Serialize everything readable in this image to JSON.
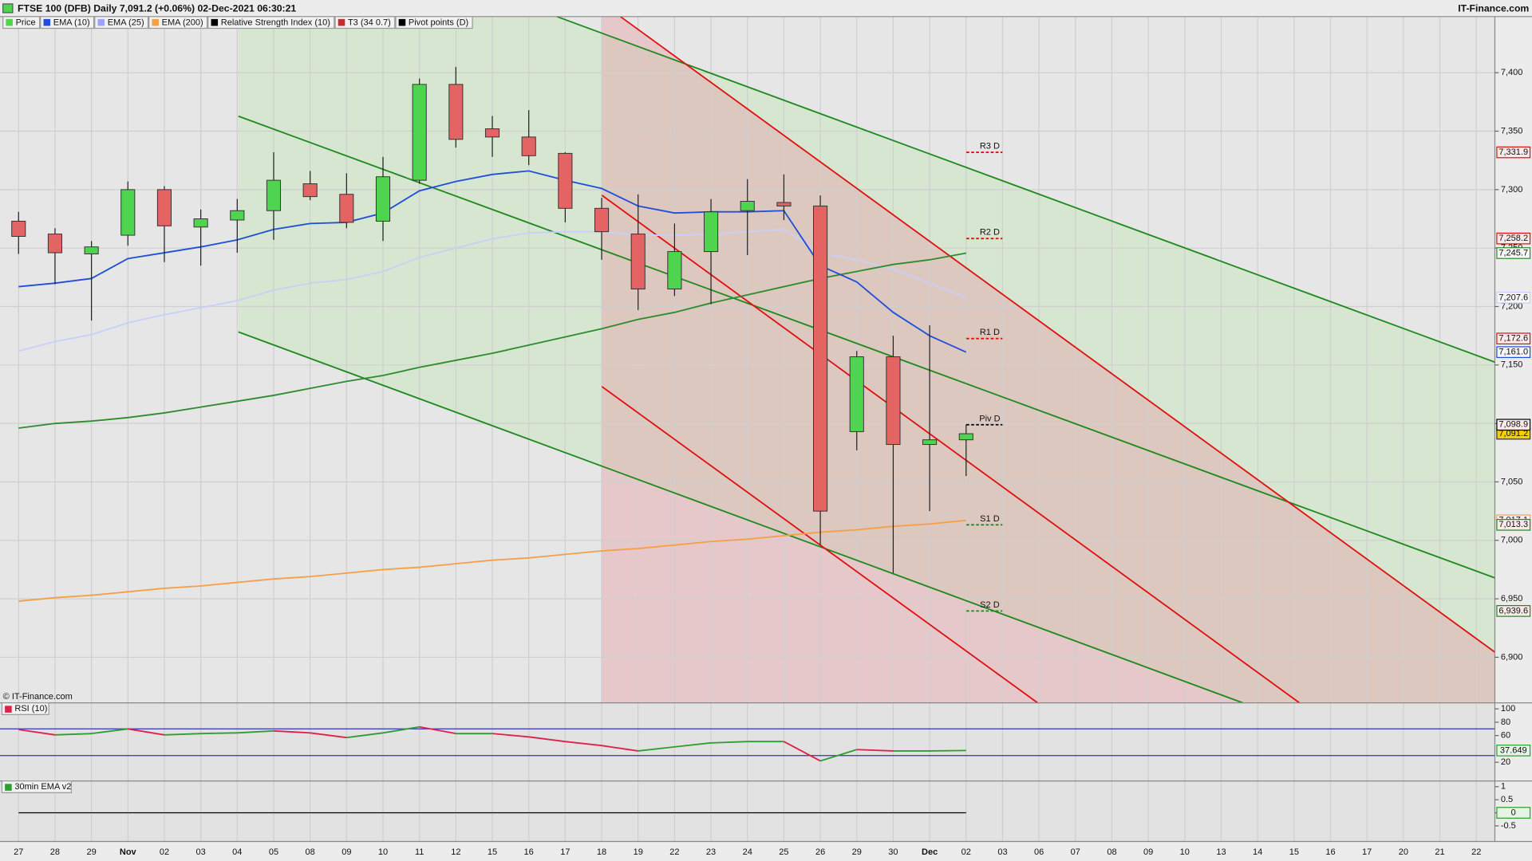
{
  "chart_data": [
    {
      "type": "candlestick",
      "title": "FTSE 100 (DFB) Daily 7,091.2 (+0.06%) 02-Dec-2021 06:30:21",
      "source": "IT-Finance.com",
      "credit": "© IT-Finance.com",
      "legend": [
        {
          "name": "Price",
          "color": "#4fd44f"
        },
        {
          "name": "EMA (10)",
          "color": "#1f4fd8"
        },
        {
          "name": "EMA (25)",
          "color": "#9fa3f5"
        },
        {
          "name": "EMA (200)",
          "color": "#f4a04a"
        },
        {
          "name": "Relative Strength Index (10)",
          "color": "#000000"
        },
        {
          "name": "T3 (34 0.7)",
          "color": "#c03030"
        },
        {
          "name": "Pivot points (D)",
          "color": "#000000"
        }
      ],
      "categories": [
        "27",
        "28",
        "29",
        "Nov",
        "02",
        "03",
        "04",
        "05",
        "08",
        "09",
        "10",
        "11",
        "12",
        "15",
        "16",
        "17",
        "18",
        "19",
        "22",
        "23",
        "24",
        "25",
        "26",
        "29",
        "30",
        "Dec",
        "02",
        "03",
        "06",
        "07",
        "08",
        "09",
        "10",
        "13",
        "14",
        "15",
        "16",
        "17",
        "20",
        "21",
        "22"
      ],
      "open": [
        7273,
        7262,
        7245,
        7261,
        7300,
        7268,
        7274,
        7282,
        7305,
        7296,
        7273,
        7308,
        7390,
        7352,
        7345,
        7331,
        7284,
        7262,
        7215,
        7247,
        7282,
        7289,
        7286,
        7093,
        7157,
        7082,
        7086,
        null,
        null,
        null,
        null,
        null,
        null,
        null,
        null,
        null,
        null,
        null,
        null,
        null,
        null
      ],
      "high": [
        7281,
        7267,
        7256,
        7307,
        7303,
        7283,
        7292,
        7332,
        7316,
        7314,
        7328,
        7395,
        7405,
        7363,
        7368,
        7332,
        7293,
        7296,
        7271,
        7292,
        7309,
        7313,
        7295,
        7162,
        7175,
        7184,
        7099,
        null,
        null,
        null,
        null,
        null,
        null,
        null,
        null,
        null,
        null,
        null,
        null,
        null,
        null
      ],
      "low": [
        7245,
        7219,
        7188,
        7252,
        7238,
        7235,
        7246,
        7257,
        7291,
        7267,
        7256,
        7305,
        7336,
        7328,
        7321,
        7272,
        7240,
        7197,
        7209,
        7202,
        7244,
        7274,
        6996,
        7077,
        6972,
        7025,
        7055,
        null,
        null,
        null,
        null,
        null,
        null,
        null,
        null,
        null,
        null,
        null,
        null,
        null,
        null
      ],
      "close": [
        7260,
        7246,
        7251,
        7300,
        7269,
        7275,
        7282,
        7308,
        7294,
        7272,
        7311,
        7390,
        7343,
        7345,
        7329,
        7284,
        7264,
        7215,
        7247,
        7281,
        7290,
        7286,
        7025,
        7157,
        7082,
        7086,
        7091.2,
        null,
        null,
        null,
        null,
        null,
        null,
        null,
        null,
        null,
        null,
        null,
        null,
        null,
        null
      ],
      "close_last_label": "7,091.2",
      "up_color": "#4fd44f",
      "down_color": "#e46464",
      "series": [
        {
          "color": "#c8d0f8",
          "values": [
            7162,
            7170,
            7176,
            7186,
            7193,
            7199,
            7205,
            7214,
            7220,
            7223,
            7230,
            7242,
            7250,
            7258,
            7263,
            7264,
            7264,
            7261,
            7261,
            7262,
            7264,
            7266,
            7246,
            7240,
            7232,
            7220,
            7207.6,
            null,
            null,
            null,
            null,
            null,
            null,
            null,
            null,
            null,
            null,
            null,
            null,
            null,
            null
          ],
          "last_label": "7,207.6"
        },
        {
          "color": "#f4a04a",
          "values": [
            6948,
            6951,
            6953,
            6956,
            6959,
            6961,
            6964,
            6967,
            6969,
            6972,
            6975,
            6977,
            6980,
            6983,
            6985,
            6988,
            6991,
            6993,
            6996,
            6999,
            7001,
            7004,
            7007,
            7009,
            7012,
            7014,
            7017.1,
            null,
            null,
            null,
            null,
            null,
            null,
            null,
            null,
            null,
            null,
            null,
            null,
            null,
            null
          ],
          "last_label": "7,017.1"
        },
        {
          "color": "#2e8b2e",
          "values": [
            7096,
            7100,
            7102,
            7105,
            7109,
            7114,
            7119,
            7124,
            7130,
            7136,
            7141,
            7148,
            7154,
            7160,
            7167,
            7174,
            7181,
            7189,
            7195,
            7203,
            7210,
            7217,
            7224,
            7230,
            7236,
            7240,
            7245.7,
            null,
            null,
            null,
            null,
            null,
            null,
            null,
            null,
            null,
            null,
            null,
            null,
            null,
            null
          ],
          "last_label": "7,245.7"
        },
        {
          "color": "#1f4fd8",
          "values": [
            7217,
            7220,
            7224,
            7241,
            7246,
            7251,
            7257,
            7266,
            7271,
            7272,
            7280,
            7299,
            7307,
            7313,
            7316,
            7308,
            7301,
            7286,
            7280,
            7281,
            7281,
            7282,
            7235,
            7221,
            7195,
            7175,
            7161.0,
            null,
            null,
            null,
            null,
            null,
            null,
            null,
            null,
            null,
            null,
            null,
            null,
            null,
            null
          ],
          "last_label": "7,161.0"
        }
      ],
      "pivots": {
        "names": [
          "R3 D",
          "R2 D",
          "R1 D",
          "Piv D",
          "S1 D",
          "S2 D"
        ],
        "values": [
          7331.9,
          7258.2,
          7172.6,
          7098.9,
          7013.3,
          6939.6
        ],
        "value_labels": [
          "7,331.9",
          "7,258.2",
          "7,172.6",
          "7,098.9",
          "7,013.3",
          "6,939.6"
        ],
        "colors": [
          "#e01010",
          "#e01010",
          "#e01010",
          "#000000",
          "#1e8a1e",
          "#1e8a1e"
        ]
      },
      "ylim": [
        6861,
        7448
      ],
      "yticks": [
        {
          "value": 6900,
          "label": "6,900"
        },
        {
          "value": 6950,
          "label": "6,950"
        },
        {
          "value": 7000,
          "label": "7,000"
        },
        {
          "value": 7050,
          "label": "7,050"
        },
        {
          "value": 7100,
          "label": "7,100"
        },
        {
          "value": 7150,
          "label": "7,150"
        },
        {
          "value": 7200,
          "label": "7,200"
        },
        {
          "value": 7250,
          "label": "7,250"
        },
        {
          "value": 7300,
          "label": "7,300"
        },
        {
          "value": 7350,
          "label": "7,350"
        },
        {
          "value": 7400,
          "label": "7,400"
        }
      ],
      "grid": true
    },
    {
      "type": "line",
      "title": "RSI (10)",
      "values": [
        69,
        61,
        63,
        70,
        61,
        63,
        64,
        67,
        64,
        57,
        64,
        73,
        63,
        63,
        58,
        51,
        45,
        37,
        43,
        49,
        51,
        51,
        22,
        39,
        37,
        37,
        37.649,
        null,
        null,
        null,
        null,
        null,
        null,
        null,
        null,
        null,
        null,
        null,
        null,
        null,
        null
      ],
      "up_color": "#2e9e2e",
      "down_color": "#e0204a",
      "levels": [
        70,
        30
      ],
      "level_color": "#3030c0",
      "ylim": [
        -8,
        109
      ],
      "yticks": [
        100,
        80,
        60,
        20
      ]
    },
    {
      "type": "line",
      "title": "30min EMA v2",
      "values": [
        0,
        0,
        0,
        0,
        0,
        0,
        0,
        0,
        0,
        0,
        0,
        0,
        0,
        0,
        0,
        0,
        0,
        0,
        0,
        0,
        0,
        0,
        0,
        0,
        0,
        0,
        0,
        null,
        null,
        null,
        null,
        null,
        null,
        null,
        null,
        null,
        null,
        null,
        null,
        null,
        null
      ],
      "color": "#000000",
      "ylim": [
        -1.1,
        1.22
      ],
      "yticks": [
        1,
        0.5,
        0,
        -0.5
      ]
    }
  ]
}
